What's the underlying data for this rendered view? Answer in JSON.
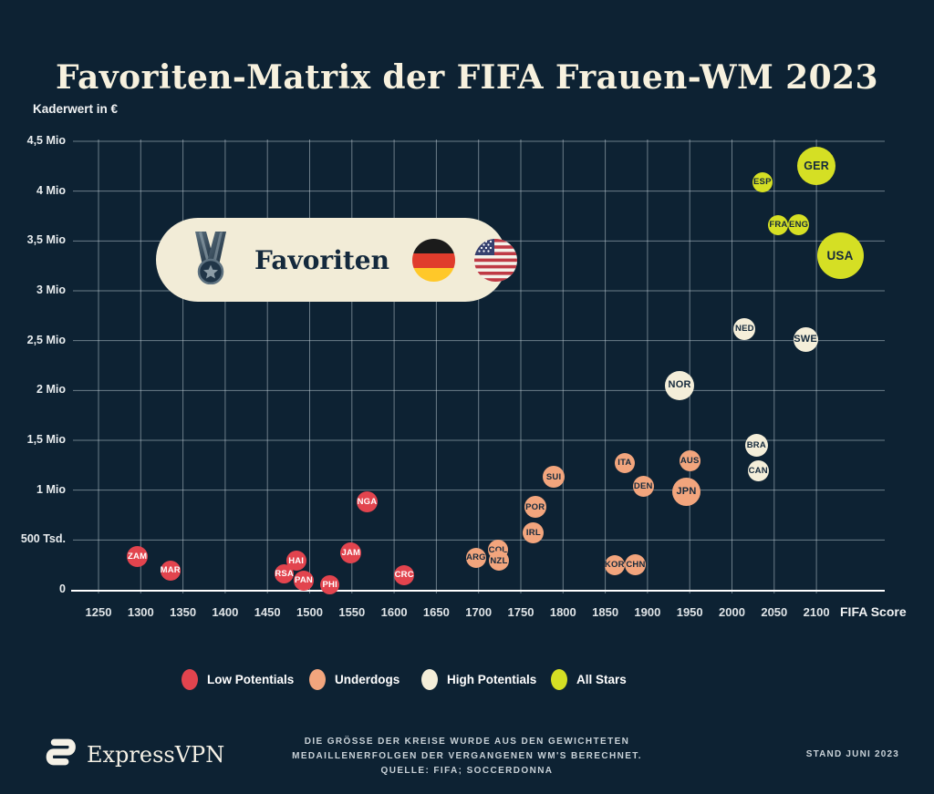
{
  "title": "Favoriten-Matrix der FIFA Frauen-WM 2023",
  "y_axis": {
    "label": "Kaderwert in €"
  },
  "x_axis": {
    "label": "FIFA Score"
  },
  "badge": {
    "label": "Favoriten",
    "icons": [
      "medal-icon",
      "germany-flag-icon",
      "usa-flag-icon"
    ]
  },
  "legend": {
    "items": [
      {
        "label": "Low Potentials",
        "color": "#E2444E"
      },
      {
        "label": "Underdogs",
        "color": "#F2A57D"
      },
      {
        "label": "High Potentials",
        "color": "#F4EED9"
      },
      {
        "label": "All Stars",
        "color": "#D5DF24"
      }
    ]
  },
  "footer": {
    "brand": "ExpressVPN",
    "note_lines": [
      "DIE GRÖSSE DER KREISE WURDE AUS DEN GEWICHTETEN",
      "MEDAILLENERFOLGEN DER VERGANGENEN WM'S BERECHNET.",
      "QUELLE: FIFA; SOCCERDONNA"
    ],
    "stand": "STAND JUNI 2023"
  },
  "colors": {
    "background": "#0D2233",
    "pill_cream": "#F2ECD7",
    "low": "#E2444E",
    "underdog": "#F2A57D",
    "high": "#F4EED9",
    "allstar": "#D5DF24",
    "bubble_text_dark": "#14293C",
    "bubble_text_light": "#FFFFFF",
    "grid": "rgba(203,216,224,0.5)",
    "axis": "#FFFFFF"
  },
  "chart_data": {
    "type": "scatter",
    "title": "Favoriten-Matrix der FIFA Frauen-WM 2023",
    "xlabel": "FIFA Score",
    "ylabel": "Kaderwert in €",
    "xlim": [
      1250,
      2100
    ],
    "ylim_mio": [
      0,
      4.5
    ],
    "x_ticks": [
      1250,
      1300,
      1350,
      1400,
      1450,
      1500,
      1550,
      1600,
      1650,
      1700,
      1750,
      1800,
      1850,
      1900,
      1950,
      2000,
      2050,
      2100
    ],
    "y_ticks": [
      {
        "value_mio": 0,
        "label": "0"
      },
      {
        "value_mio": 0.5,
        "label": "500 Tsd."
      },
      {
        "value_mio": 1,
        "label": "1 Mio"
      },
      {
        "value_mio": 1.5,
        "label": "1,5 Mio"
      },
      {
        "value_mio": 2,
        "label": "2 Mio"
      },
      {
        "value_mio": 2.5,
        "label": "2,5 Mio"
      },
      {
        "value_mio": 3,
        "label": "3 Mio"
      },
      {
        "value_mio": 3.5,
        "label": "3,5 Mio"
      },
      {
        "value_mio": 4,
        "label": "4 Mio"
      },
      {
        "value_mio": 4.5,
        "label": "4,5 Mio"
      }
    ],
    "legend_position": "bottom",
    "grid": true,
    "points": [
      {
        "label": "ZAM",
        "category": "low",
        "fifa_score": 1296,
        "kaderwert_mio": 0.33,
        "r": 11.5
      },
      {
        "label": "MAR",
        "category": "low",
        "fifa_score": 1335,
        "kaderwert_mio": 0.19,
        "r": 11
      },
      {
        "label": "RSA",
        "category": "low",
        "fifa_score": 1470,
        "kaderwert_mio": 0.16,
        "r": 10.5
      },
      {
        "label": "HAI",
        "category": "low",
        "fifa_score": 1484,
        "kaderwert_mio": 0.29,
        "r": 11
      },
      {
        "label": "PAN",
        "category": "low",
        "fifa_score": 1493,
        "kaderwert_mio": 0.09,
        "r": 11
      },
      {
        "label": "PHI",
        "category": "low",
        "fifa_score": 1524,
        "kaderwert_mio": 0.05,
        "r": 10.5
      },
      {
        "label": "JAM",
        "category": "low",
        "fifa_score": 1549,
        "kaderwert_mio": 0.37,
        "r": 11.5
      },
      {
        "label": "NGA",
        "category": "low",
        "fifa_score": 1568,
        "kaderwert_mio": 0.88,
        "r": 11.5
      },
      {
        "label": "CRC",
        "category": "low",
        "fifa_score": 1612,
        "kaderwert_mio": 0.15,
        "r": 11
      },
      {
        "label": "ARG",
        "category": "underdog",
        "fifa_score": 1697,
        "kaderwert_mio": 0.32,
        "r": 11
      },
      {
        "label": "COL",
        "category": "underdog",
        "fifa_score": 1723,
        "kaderwert_mio": 0.4,
        "r": 11
      },
      {
        "label": "NZL",
        "category": "underdog",
        "fifa_score": 1724,
        "kaderwert_mio": 0.29,
        "r": 11
      },
      {
        "label": "IRL",
        "category": "underdog",
        "fifa_score": 1765,
        "kaderwert_mio": 0.57,
        "r": 11.5
      },
      {
        "label": "POR",
        "category": "underdog",
        "fifa_score": 1767,
        "kaderwert_mio": 0.83,
        "r": 12
      },
      {
        "label": "SUI",
        "category": "underdog",
        "fifa_score": 1789,
        "kaderwert_mio": 1.13,
        "r": 12
      },
      {
        "label": "KOR",
        "category": "underdog",
        "fifa_score": 1861,
        "kaderwert_mio": 0.25,
        "r": 11
      },
      {
        "label": "CHN",
        "category": "underdog",
        "fifa_score": 1886,
        "kaderwert_mio": 0.25,
        "r": 11.5
      },
      {
        "label": "ITA",
        "category": "underdog",
        "fifa_score": 1873,
        "kaderwert_mio": 1.27,
        "r": 11
      },
      {
        "label": "DEN",
        "category": "underdog",
        "fifa_score": 1895,
        "kaderwert_mio": 1.04,
        "r": 11.5
      },
      {
        "label": "AUS",
        "category": "underdog",
        "fifa_score": 1950,
        "kaderwert_mio": 1.29,
        "r": 11.5
      },
      {
        "label": "JPN",
        "category": "underdog",
        "fifa_score": 1946,
        "kaderwert_mio": 0.98,
        "r": 15.5
      },
      {
        "label": "NOR",
        "category": "high",
        "fifa_score": 1938,
        "kaderwert_mio": 2.05,
        "r": 16
      },
      {
        "label": "NED",
        "category": "high",
        "fifa_score": 2015,
        "kaderwert_mio": 2.62,
        "r": 12
      },
      {
        "label": "SWE",
        "category": "high",
        "fifa_score": 2087,
        "kaderwert_mio": 2.51,
        "r": 13.5
      },
      {
        "label": "BRA",
        "category": "high",
        "fifa_score": 2029,
        "kaderwert_mio": 1.45,
        "r": 12.5
      },
      {
        "label": "CAN",
        "category": "high",
        "fifa_score": 2031,
        "kaderwert_mio": 1.19,
        "r": 11.5
      },
      {
        "label": "ESP",
        "category": "allstar",
        "fifa_score": 2036,
        "kaderwert_mio": 4.09,
        "r": 11
      },
      {
        "label": "FRA",
        "category": "allstar",
        "fifa_score": 2055,
        "kaderwert_mio": 3.66,
        "r": 11
      },
      {
        "label": "ENG",
        "category": "allstar",
        "fifa_score": 2079,
        "kaderwert_mio": 3.66,
        "r": 11.5
      },
      {
        "label": "GER",
        "category": "allstar",
        "fifa_score": 2100,
        "kaderwert_mio": 4.25,
        "r": 21
      },
      {
        "label": "USA",
        "category": "allstar",
        "fifa_score": 2128,
        "kaderwert_mio": 3.35,
        "r": 25.5
      }
    ]
  }
}
